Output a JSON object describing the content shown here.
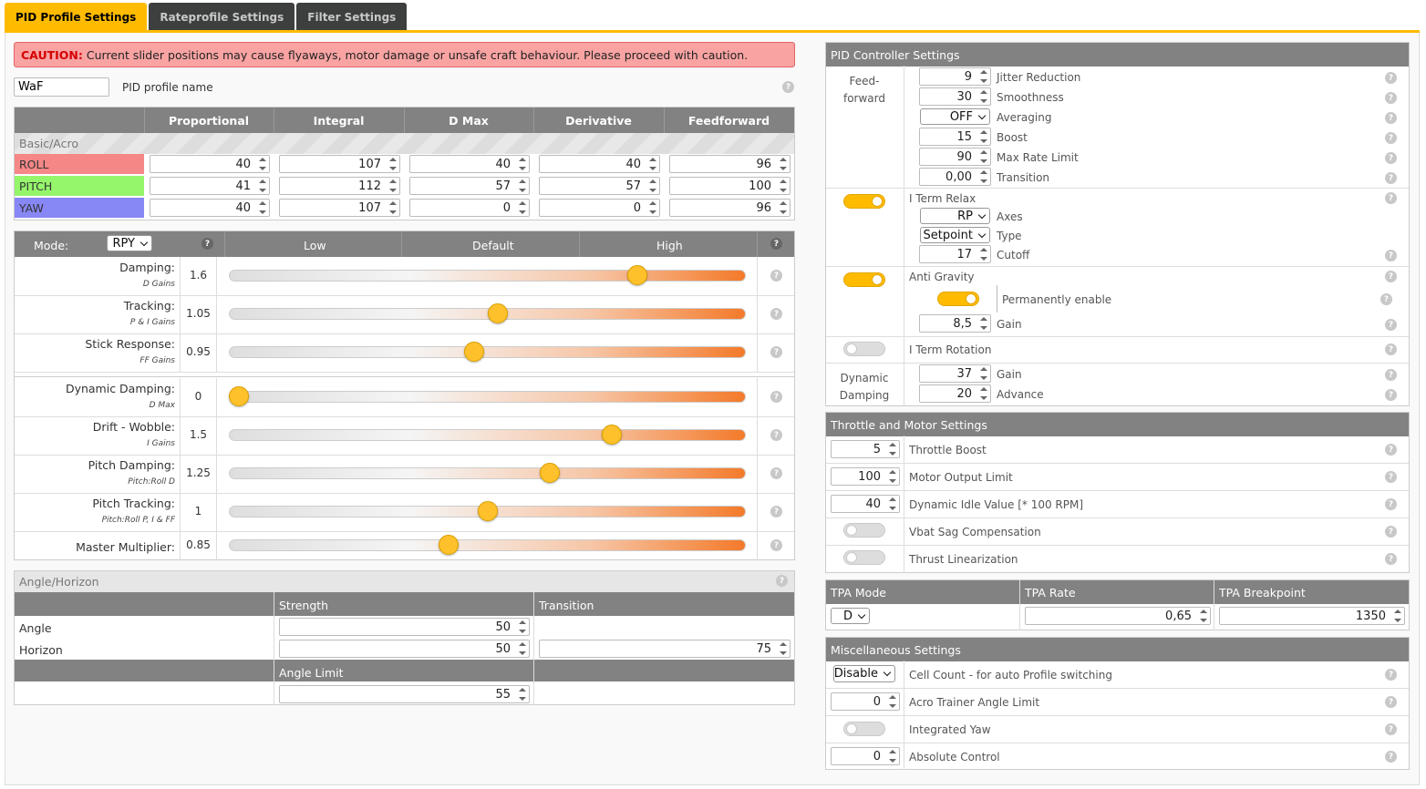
{
  "tabs": [
    "PID Profile Settings",
    "Rateprofile Settings",
    "Filter Settings"
  ],
  "caution": {
    "label": "CAUTION:",
    "text": "Current slider positions may cause flyaways, motor damage or unsafe craft behaviour. Please proceed with caution."
  },
  "profile": {
    "name": "WaF",
    "label": "PID profile name"
  },
  "pid": {
    "headers": [
      "Proportional",
      "Integral",
      "D Max",
      "Derivative",
      "Feedforward"
    ],
    "section": "Basic/Acro",
    "rows": [
      {
        "name": "ROLL",
        "color": "#f58787",
        "values": [
          "40",
          "107",
          "40",
          "40",
          "96"
        ]
      },
      {
        "name": "PITCH",
        "color": "#95f56b",
        "values": [
          "41",
          "112",
          "57",
          "57",
          "100"
        ]
      },
      {
        "name": "YAW",
        "color": "#8787f5",
        "values": [
          "40",
          "107",
          "0",
          "0",
          "96"
        ]
      }
    ]
  },
  "sliders": {
    "mode_label": "Mode:",
    "mode": "RPY",
    "headers": [
      "Low",
      "Default",
      "High"
    ],
    "items": [
      {
        "label": "Damping:",
        "sub": "D Gains",
        "value": "1.6",
        "pos": 0.79
      },
      {
        "label": "Tracking:",
        "sub": "P & I Gains",
        "value": "1.05",
        "pos": 0.52
      },
      {
        "label": "Stick Response:",
        "sub": "FF Gains",
        "value": "0.95",
        "pos": 0.475
      },
      {
        "label": "Dynamic Damping:",
        "sub": "D Max",
        "value": "0",
        "pos": 0.02
      },
      {
        "label": "Drift - Wobble:",
        "sub": "I Gains",
        "value": "1.5",
        "pos": 0.74
      },
      {
        "label": "Pitch Damping:",
        "sub": "Pitch:Roll D",
        "value": "1.25",
        "pos": 0.62
      },
      {
        "label": "Pitch Tracking:",
        "sub": "Pitch:Roll P, I & FF",
        "value": "1",
        "pos": 0.5
      },
      {
        "label": "Master Multiplier:",
        "sub": "",
        "value": "0.85",
        "pos": 0.425
      }
    ]
  },
  "angle": {
    "title": "Angle/Horizon",
    "strength": "Strength",
    "transition": "Transition",
    "angle_label": "Angle",
    "horizon_label": "Horizon",
    "angle_strength": "50",
    "horizon_strength": "50",
    "horizon_transition": "75",
    "limit_label": "Angle Limit",
    "limit": "55"
  },
  "pidc": {
    "title": "PID Controller Settings",
    "ff_label": "Feed-\nforward",
    "ff": [
      {
        "v": "9",
        "l": "Jitter Reduction"
      },
      {
        "v": "30",
        "l": "Smoothness"
      },
      {
        "v": "OFF",
        "l": "Averaging",
        "sel": true
      },
      {
        "v": "15",
        "l": "Boost"
      },
      {
        "v": "90",
        "l": "Max Rate Limit"
      },
      {
        "v": "0,00",
        "l": "Transition"
      }
    ],
    "iterm_relax": "I Term Relax",
    "axes": "RP",
    "axes_l": "Axes",
    "type": "Setpoint",
    "type_l": "Type",
    "cutoff": "17",
    "cutoff_l": "Cutoff",
    "anti_gravity": "Anti Gravity",
    "perm": "Permanently enable",
    "ag_gain": "8,5",
    "gain_l": "Gain",
    "iterm_rot": "I Term Rotation",
    "dyn_label": "Dynamic\nDamping",
    "dd_gain": "37",
    "dd_adv": "20",
    "adv_l": "Advance"
  },
  "throttle": {
    "title": "Throttle and Motor Settings",
    "items": [
      {
        "v": "5",
        "l": "Throttle Boost"
      },
      {
        "v": "100",
        "l": "Motor Output Limit"
      },
      {
        "v": "40",
        "l": "Dynamic Idle Value [* 100 RPM]"
      },
      {
        "l": "Vbat Sag Compensation"
      },
      {
        "l": "Thrust Linearization"
      }
    ]
  },
  "tpa": {
    "mode_h": "TPA Mode",
    "rate_h": "TPA Rate",
    "bp_h": "TPA Breakpoint",
    "mode": "D",
    "rate": "0,65",
    "bp": "1350"
  },
  "misc": {
    "title": "Miscellaneous Settings",
    "cell": "Disable",
    "cell_l": "Cell Count - for auto Profile switching",
    "acro": "0",
    "acro_l": "Acro Trainer Angle Limit",
    "iyaw_l": "Integrated Yaw",
    "abs": "0",
    "abs_l": "Absolute Control"
  }
}
